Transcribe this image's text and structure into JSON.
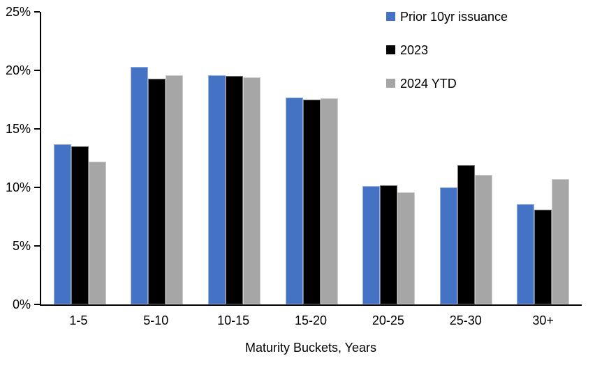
{
  "chart_data": {
    "type": "bar",
    "title": "",
    "xlabel": "Maturity Buckets, Years",
    "ylabel": "",
    "ylim": [
      0,
      25
    ],
    "grid": false,
    "legend_position": "top-right",
    "ytick_values": [
      0,
      5,
      10,
      15,
      20,
      25
    ],
    "ytick_labels": [
      "0%",
      "5%",
      "10%",
      "15%",
      "20%",
      "25%"
    ],
    "categories": [
      "1-5",
      "5-10",
      "10-15",
      "15-20",
      "20-25",
      "25-30",
      "30+"
    ],
    "series": [
      {
        "name": "Prior 10yr issuance",
        "color": "#4472C4",
        "values": [
          13.7,
          20.3,
          19.6,
          17.7,
          10.1,
          10.0,
          8.6
        ]
      },
      {
        "name": "2023",
        "color": "#000000",
        "values": [
          13.5,
          19.3,
          19.5,
          17.5,
          10.2,
          11.9,
          8.1
        ]
      },
      {
        "name": "2024 YTD",
        "color": "#A6A6A6",
        "values": [
          12.2,
          19.6,
          19.4,
          17.6,
          9.6,
          11.1,
          10.7
        ]
      }
    ],
    "colors": {
      "axis": "#000000",
      "background": "#FFFFFF"
    }
  }
}
